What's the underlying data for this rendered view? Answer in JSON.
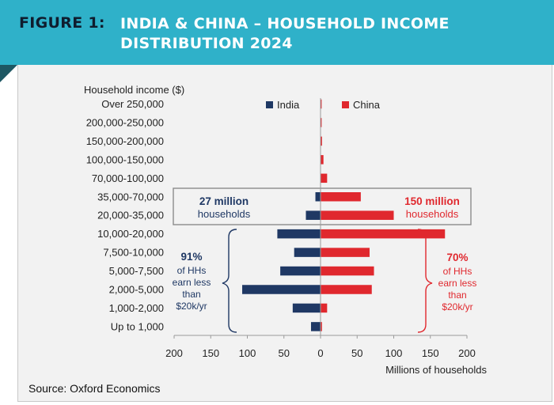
{
  "header": {
    "figure_label": "FIGURE 1:",
    "title": "INDIA & CHINA – HOUSEHOLD INCOME DISTRIBUTION 2024"
  },
  "source": "Source: Oxford Economics",
  "colors": {
    "india": "#1f3864",
    "china": "#e0282e",
    "banner": "#2fb1c9"
  },
  "chart_data": {
    "type": "bar",
    "orientation": "horizontal-butterfly",
    "title": "",
    "category_axis_label": "Household income ($)",
    "xlabel": "Millions of households",
    "categories": [
      "Over 250,000",
      "200,000-250,000",
      "150,000-200,000",
      "100,000-150,000",
      "70,000-100,000",
      "35,000-70,000",
      "20,000-35,000",
      "10,000-20,000",
      "7,500-10,000",
      "5,000-7,500",
      "2,000-5,000",
      "1,000-2,000",
      "Up to 1,000"
    ],
    "x_ticks": [
      "200",
      "150",
      "100",
      "50",
      "0",
      "50",
      "100",
      "150",
      "200"
    ],
    "xlim": [
      -200,
      200
    ],
    "legend_position": "top",
    "series": [
      {
        "name": "India",
        "side": "left",
        "values": [
          0.5,
          0.5,
          0.3,
          0.5,
          0.5,
          7,
          20,
          59,
          36,
          55,
          107,
          38,
          13
        ]
      },
      {
        "name": "China",
        "side": "right",
        "values": [
          1.5,
          1.5,
          2,
          4,
          9,
          55,
          100,
          170,
          67,
          73,
          70,
          9,
          2
        ]
      }
    ],
    "annotations": {
      "india_box": [
        "27 million",
        "households"
      ],
      "china_box": [
        "150 million",
        "households"
      ],
      "india_brace": [
        "91%",
        "of HHs",
        "earn less",
        "than",
        "$20k/yr"
      ],
      "china_brace": [
        "70%",
        "of HHs",
        "earn less",
        "than",
        "$20k/yr"
      ]
    }
  }
}
